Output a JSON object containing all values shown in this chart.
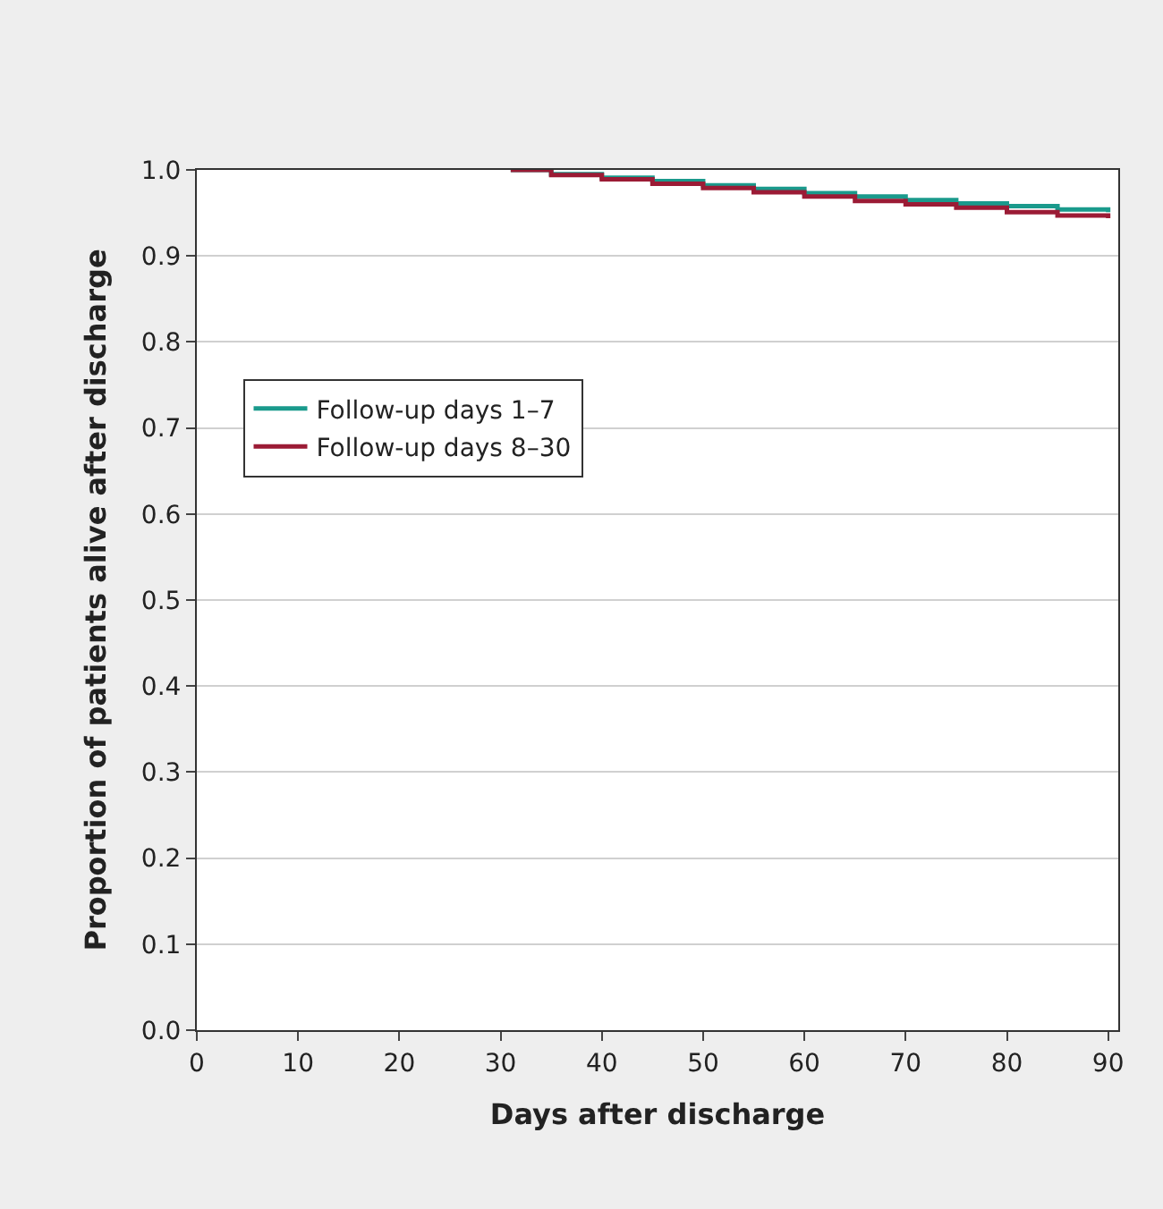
{
  "chart_data": {
    "type": "step",
    "xlabel": "Days after discharge",
    "ylabel": "Proportion of patients alive after discharge",
    "xlim": [
      0,
      91
    ],
    "ylim": [
      0,
      1
    ],
    "xticks": [
      0,
      10,
      20,
      30,
      40,
      50,
      60,
      70,
      80,
      90
    ],
    "yticks": [
      {
        "value": 0,
        "label": "0.0"
      },
      {
        "value": 0.1,
        "label": "0.1"
      },
      {
        "value": 0.2,
        "label": "0.2"
      },
      {
        "value": 0.3,
        "label": "0.3"
      },
      {
        "value": 0.4,
        "label": "0.4"
      },
      {
        "value": 0.5,
        "label": "0.5"
      },
      {
        "value": 0.6,
        "label": "0.6"
      },
      {
        "value": 0.7,
        "label": "0.7"
      },
      {
        "value": 0.8,
        "label": "0.8"
      },
      {
        "value": 0.9,
        "label": "0.9"
      },
      {
        "value": 1.0,
        "label": "1.0"
      }
    ],
    "grid": "y",
    "legend": "left",
    "marker": "none",
    "line_style": "solid",
    "x": [
      31,
      35,
      40,
      45,
      50,
      55,
      60,
      65,
      70,
      75,
      80,
      85,
      90
    ],
    "series": [
      {
        "name": "Follow-up days 1–7",
        "color": "#1a9a8c",
        "values": [
          1.0,
          0.995,
          0.991,
          0.987,
          0.982,
          0.978,
          0.973,
          0.969,
          0.965,
          0.961,
          0.958,
          0.954,
          0.951
        ]
      },
      {
        "name": "Follow-up days 8–30",
        "color": "#9b1b35",
        "values": [
          1.0,
          0.994,
          0.989,
          0.984,
          0.979,
          0.974,
          0.969,
          0.964,
          0.96,
          0.956,
          0.951,
          0.947,
          0.944
        ]
      }
    ]
  }
}
